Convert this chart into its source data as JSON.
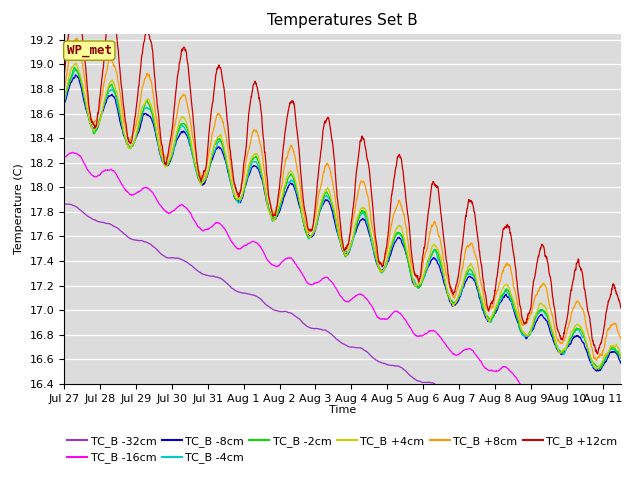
{
  "title": "Temperatures Set B",
  "xlabel": "Time",
  "ylabel": "Temperature (C)",
  "ylim": [
    16.4,
    19.25
  ],
  "bg_color": "#dcdcdc",
  "series": [
    {
      "label": "TC_B -32cm",
      "color": "#9933cc"
    },
    {
      "label": "TC_B -16cm",
      "color": "#ff00ff"
    },
    {
      "label": "TC_B -8cm",
      "color": "#0000dd"
    },
    {
      "label": "TC_B -4cm",
      "color": "#00cccc"
    },
    {
      "label": "TC_B -2cm",
      "color": "#00dd00"
    },
    {
      "label": "TC_B +4cm",
      "color": "#cccc00"
    },
    {
      "label": "TC_B +8cm",
      "color": "#ff9900"
    },
    {
      "label": "TC_B +12cm",
      "color": "#cc0000"
    }
  ],
  "xtick_labels": [
    "Jul 27",
    "Jul 28",
    "Jul 29",
    "Jul 30",
    "Jul 31",
    "Aug 1",
    "Aug 2",
    "Aug 3",
    "Aug 4",
    "Aug 5",
    "Aug 6",
    "Aug 7",
    "Aug 8",
    "Aug 9",
    "Aug 10",
    "Aug 11"
  ],
  "wp_met_box_color": "#ffff99",
  "wp_met_text_color": "#880000",
  "legend_fontsize": 8,
  "axis_fontsize": 8,
  "title_fontsize": 11
}
